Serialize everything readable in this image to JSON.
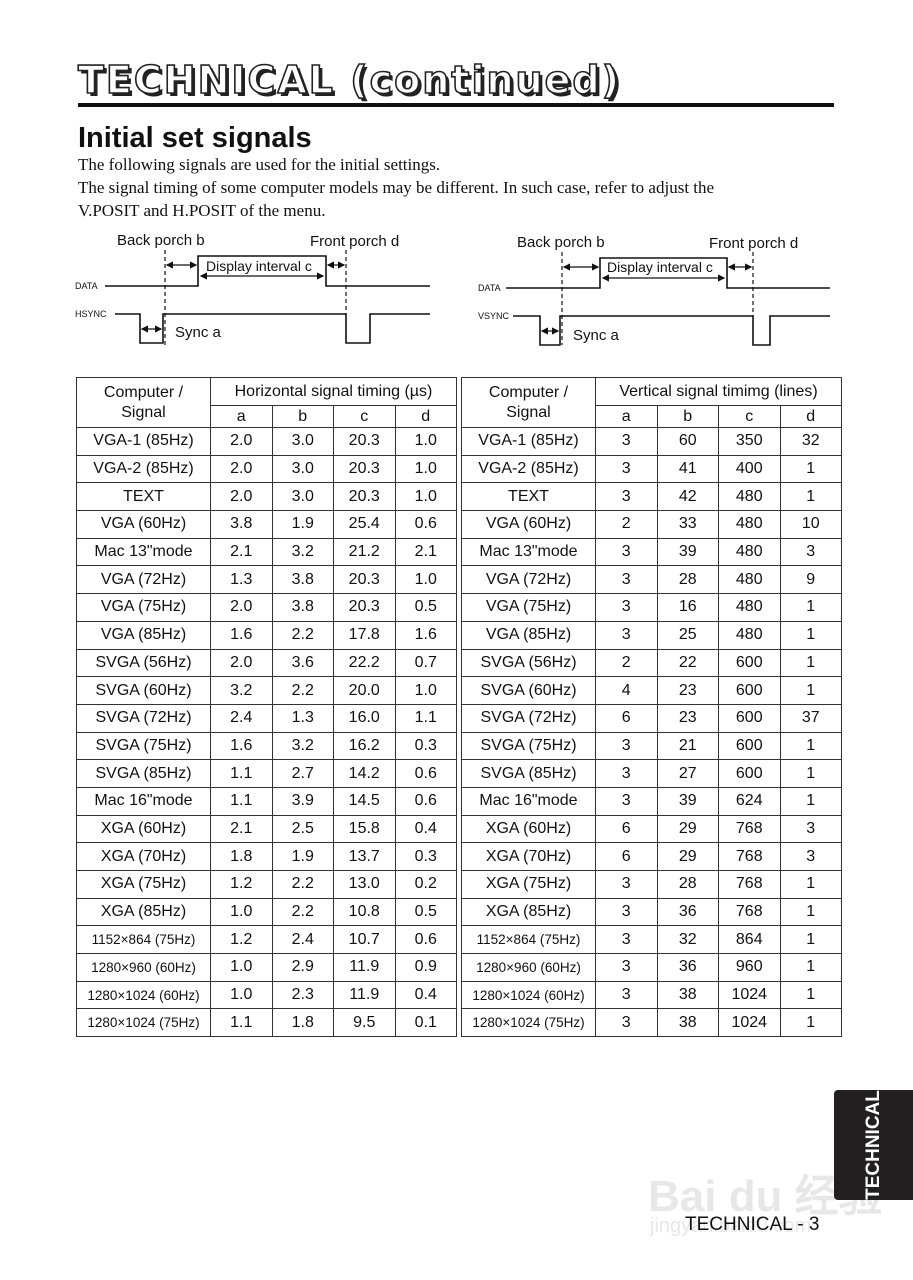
{
  "header": {
    "title": "TECHNICAL (continued)"
  },
  "section": {
    "title": "Initial set signals",
    "paragraphs": [
      "The following signals are used for the initial settings.",
      "The signal timing of some computer models may be different. In such case, refer to adjust the",
      "V.POSIT and H.POSIT of the menu."
    ]
  },
  "diagrams": {
    "horizontal": {
      "back_porch": "Back porch b",
      "front_porch": "Front porch d",
      "display": "Display interval c",
      "sync": "Sync a",
      "data": "DATA",
      "sync_signal": "HSYNC"
    },
    "vertical": {
      "back_porch": "Back porch b",
      "front_porch": "Front porch d",
      "display": "Display interval c",
      "sync": "Sync a",
      "data": "DATA",
      "sync_signal": "VSYNC"
    }
  },
  "tables": {
    "horizontal": {
      "col_signal": "Computer /\nSignal",
      "title": "Horizontal signal timing (µs)",
      "subcols": [
        "a",
        "b",
        "c",
        "d"
      ],
      "rows": [
        [
          "VGA-1 (85Hz)",
          "2.0",
          "3.0",
          "20.3",
          "1.0"
        ],
        [
          "VGA-2 (85Hz)",
          "2.0",
          "3.0",
          "20.3",
          "1.0"
        ],
        [
          "TEXT",
          "2.0",
          "3.0",
          "20.3",
          "1.0"
        ],
        [
          "VGA (60Hz)",
          "3.8",
          "1.9",
          "25.4",
          "0.6"
        ],
        [
          "Mac 13\"mode",
          "2.1",
          "3.2",
          "21.2",
          "2.1"
        ],
        [
          "VGA (72Hz)",
          "1.3",
          "3.8",
          "20.3",
          "1.0"
        ],
        [
          "VGA (75Hz)",
          "2.0",
          "3.8",
          "20.3",
          "0.5"
        ],
        [
          "VGA (85Hz)",
          "1.6",
          "2.2",
          "17.8",
          "1.6"
        ],
        [
          "SVGA (56Hz)",
          "2.0",
          "3.6",
          "22.2",
          "0.7"
        ],
        [
          "SVGA (60Hz)",
          "3.2",
          "2.2",
          "20.0",
          "1.0"
        ],
        [
          "SVGA (72Hz)",
          "2.4",
          "1.3",
          "16.0",
          "1.1"
        ],
        [
          "SVGA (75Hz)",
          "1.6",
          "3.2",
          "16.2",
          "0.3"
        ],
        [
          "SVGA (85Hz)",
          "1.1",
          "2.7",
          "14.2",
          "0.6"
        ],
        [
          "Mac 16\"mode",
          "1.1",
          "3.9",
          "14.5",
          "0.6"
        ],
        [
          "XGA (60Hz)",
          "2.1",
          "2.5",
          "15.8",
          "0.4"
        ],
        [
          "XGA (70Hz)",
          "1.8",
          "1.9",
          "13.7",
          "0.3"
        ],
        [
          "XGA (75Hz)",
          "1.2",
          "2.2",
          "13.0",
          "0.2"
        ],
        [
          "XGA (85Hz)",
          "1.0",
          "2.2",
          "10.8",
          "0.5"
        ],
        [
          "1152×864 (75Hz)",
          "1.2",
          "2.4",
          "10.7",
          "0.6"
        ],
        [
          "1280×960 (60Hz)",
          "1.0",
          "2.9",
          "11.9",
          "0.9"
        ],
        [
          "1280×1024 (60Hz)",
          "1.0",
          "2.3",
          "11.9",
          "0.4"
        ],
        [
          "1280×1024 (75Hz)",
          "1.1",
          "1.8",
          "9.5",
          "0.1"
        ]
      ]
    },
    "vertical": {
      "col_signal": "Computer /\nSignal",
      "title": "Vertical signal timimg (lines)",
      "subcols": [
        "a",
        "b",
        "c",
        "d"
      ],
      "rows": [
        [
          "VGA-1 (85Hz)",
          "3",
          "60",
          "350",
          "32"
        ],
        [
          "VGA-2 (85Hz)",
          "3",
          "41",
          "400",
          "1"
        ],
        [
          "TEXT",
          "3",
          "42",
          "480",
          "1"
        ],
        [
          "VGA (60Hz)",
          "2",
          "33",
          "480",
          "10"
        ],
        [
          "Mac 13\"mode",
          "3",
          "39",
          "480",
          "3"
        ],
        [
          "VGA (72Hz)",
          "3",
          "28",
          "480",
          "9"
        ],
        [
          "VGA (75Hz)",
          "3",
          "16",
          "480",
          "1"
        ],
        [
          "VGA (85Hz)",
          "3",
          "25",
          "480",
          "1"
        ],
        [
          "SVGA (56Hz)",
          "2",
          "22",
          "600",
          "1"
        ],
        [
          "SVGA (60Hz)",
          "4",
          "23",
          "600",
          "1"
        ],
        [
          "SVGA (72Hz)",
          "6",
          "23",
          "600",
          "37"
        ],
        [
          "SVGA (75Hz)",
          "3",
          "21",
          "600",
          "1"
        ],
        [
          "SVGA (85Hz)",
          "3",
          "27",
          "600",
          "1"
        ],
        [
          "Mac 16\"mode",
          "3",
          "39",
          "624",
          "1"
        ],
        [
          "XGA (60Hz)",
          "6",
          "29",
          "768",
          "3"
        ],
        [
          "XGA (70Hz)",
          "6",
          "29",
          "768",
          "3"
        ],
        [
          "XGA (75Hz)",
          "3",
          "28",
          "768",
          "1"
        ],
        [
          "XGA (85Hz)",
          "3",
          "36",
          "768",
          "1"
        ],
        [
          "1152×864 (75Hz)",
          "3",
          "32",
          "864",
          "1"
        ],
        [
          "1280×960 (60Hz)",
          "3",
          "36",
          "960",
          "1"
        ],
        [
          "1280×1024 (60Hz)",
          "3",
          "38",
          "1024",
          "1"
        ],
        [
          "1280×1024 (75Hz)",
          "3",
          "38",
          "1024",
          "1"
        ]
      ]
    }
  },
  "side_tab": {
    "label": "TECHNICAL",
    "color": "#231f20"
  },
  "footer": {
    "page_label": "TECHNICAL - 3"
  },
  "watermark": {
    "text": "Bai du 经验",
    "url_text": "jingyan.baidu.com"
  }
}
